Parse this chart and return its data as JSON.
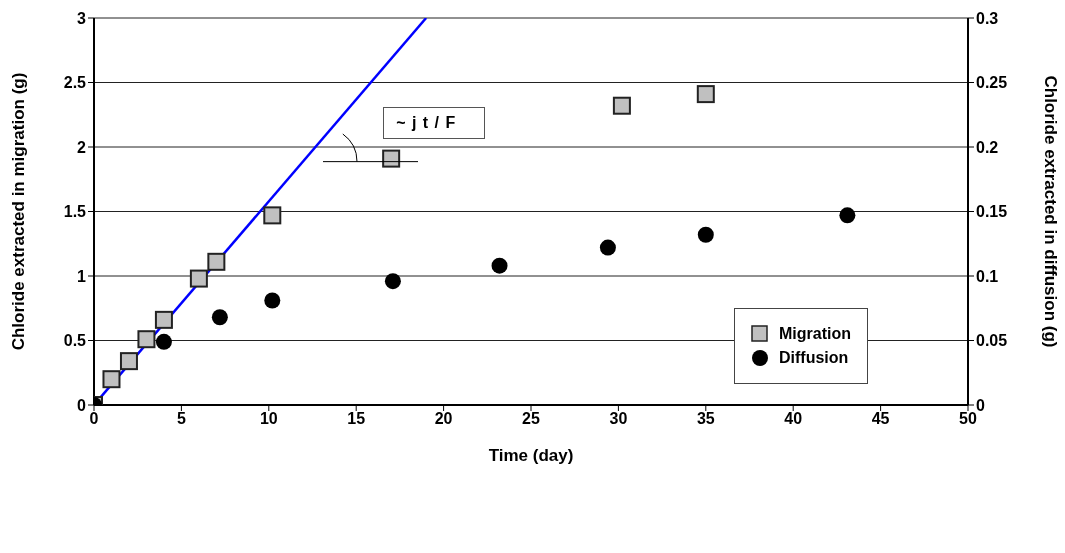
{
  "chart_data": {
    "type": "scatter",
    "xlabel": "Time (day)",
    "ylabel": "Chloride extracted in migration (g)",
    "y2label": "Chloride extracted in diffusion (g)",
    "xlim": [
      0,
      50
    ],
    "xticks": [
      0,
      5,
      10,
      15,
      20,
      25,
      30,
      35,
      40,
      45,
      50
    ],
    "ylim": [
      0,
      3
    ],
    "yticks": [
      0,
      0.5,
      1,
      1.5,
      2,
      2.5,
      3
    ],
    "y2lim": [
      0,
      0.3
    ],
    "y2ticks": [
      0,
      0.05,
      0.1,
      0.15,
      0.2,
      0.25,
      0.3
    ],
    "grid": "y",
    "legend": "right",
    "annotations": [
      "~ j t / F"
    ],
    "series": [
      {
        "name": "Migration",
        "color": "#c0c0c0",
        "marker": "square",
        "x": [
          0,
          1,
          2,
          3,
          4,
          6,
          7,
          10.2,
          17,
          30.2,
          35
        ],
        "values": [
          0,
          0.2,
          0.34,
          0.51,
          0.66,
          0.98,
          1.11,
          1.47,
          1.91,
          2.32,
          2.41
        ]
      },
      {
        "name": "Diffusion",
        "color": "#000000",
        "marker": "circle",
        "axis": "y2",
        "x": [
          0,
          4,
          7.2,
          10.2,
          17.1,
          23.2,
          29.4,
          35,
          43.1
        ],
        "values": [
          0,
          0.049,
          0.068,
          0.081,
          0.096,
          0.108,
          0.122,
          0.132,
          0.147
        ]
      },
      {
        "type": "line",
        "color": "#0000ff",
        "marker": "none",
        "x": [
          0,
          19
        ],
        "values": [
          0,
          3
        ]
      }
    ]
  }
}
